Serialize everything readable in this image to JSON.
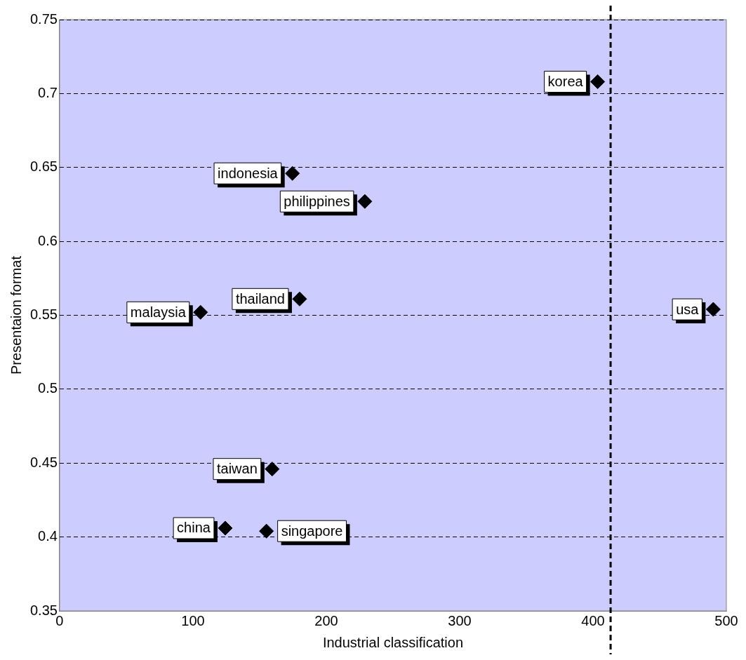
{
  "chart_data": {
    "type": "scatter",
    "xlabel": "Industrial classification",
    "ylabel": "Presentaion format",
    "x": [
      403.5,
      174.6,
      228.9,
      180,
      105.7,
      490.2,
      159.4,
      124.2,
      155.1
    ],
    "values": [
      0.708,
      0.646,
      0.627,
      0.561,
      0.552,
      0.554,
      0.446,
      0.406,
      0.404
    ],
    "color": "#000000",
    "marker": "diamond",
    "xlim": [
      0,
      500
    ],
    "xticks": [
      0,
      100,
      200,
      300,
      400,
      500
    ],
    "ylim": [
      0.35,
      0.75
    ],
    "yticks": [
      0.35,
      0.4,
      0.45,
      0.5,
      0.55,
      0.6,
      0.65,
      0.7,
      0.75
    ],
    "grid": "y",
    "legend": false,
    "ref_lines": [
      {
        "axis": "x",
        "value": 413.2,
        "line_style": "dashed",
        "color": "#000000"
      }
    ],
    "annotations": [
      {
        "text": "korea",
        "x": 403.5,
        "y": 0.708
      },
      {
        "text": "indonesia",
        "x": 174.6,
        "y": 0.646
      },
      {
        "text": "philippines",
        "x": 228.9,
        "y": 0.627
      },
      {
        "text": "thailand",
        "x": 180,
        "y": 0.561
      },
      {
        "text": "malaysia",
        "x": 105.7,
        "y": 0.552
      },
      {
        "text": "usa",
        "x": 490.2,
        "y": 0.554
      },
      {
        "text": "taiwan",
        "x": 159.4,
        "y": 0.446
      },
      {
        "text": "china",
        "x": 124.2,
        "y": 0.406
      },
      {
        "text": "singapore",
        "x": 155.1,
        "y": 0.404
      }
    ]
  }
}
